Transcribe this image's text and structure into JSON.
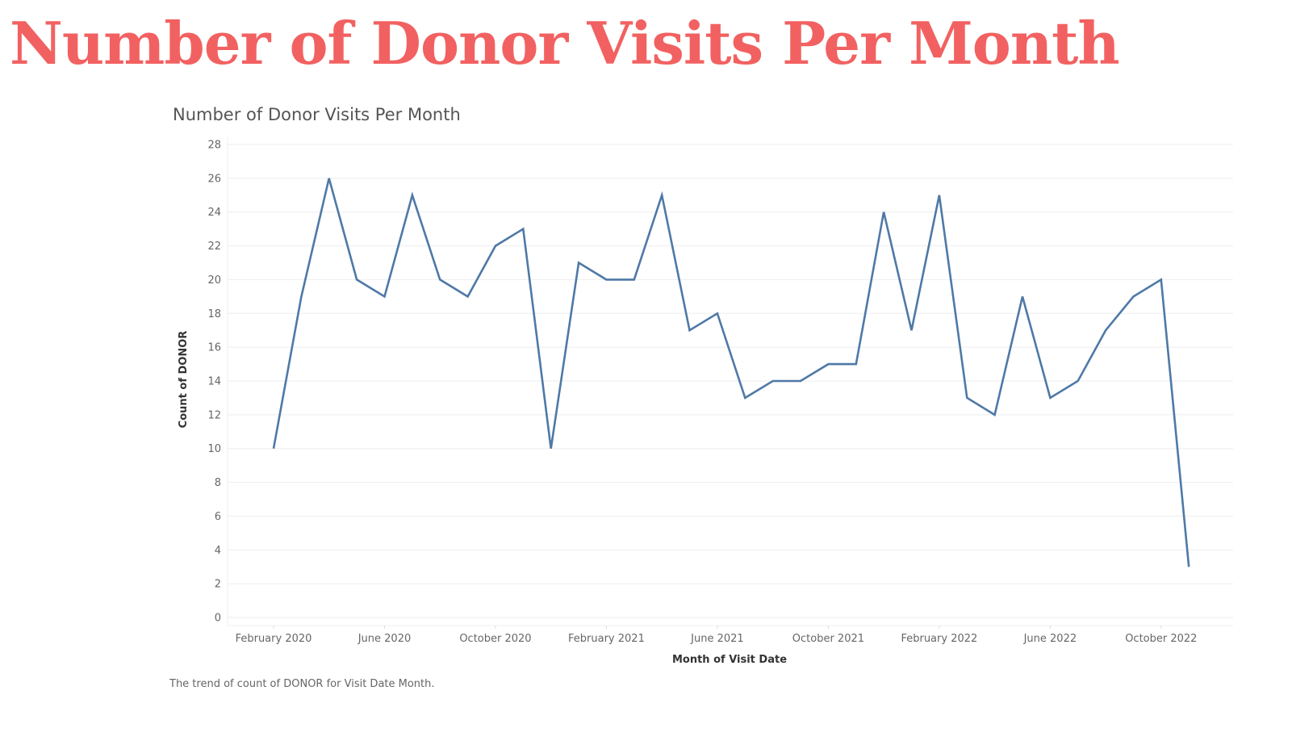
{
  "page": {
    "heading": "Number of Donor Visits Per Month",
    "caption": "The trend of count of DONOR for Visit Date Month."
  },
  "colors": {
    "heading": "#f26161",
    "line": "#4e79a7",
    "grid": "#eeeeee"
  },
  "chart_data": {
    "type": "line",
    "title": "Number of Donor Visits Per Month",
    "xlabel": "Month of Visit Date",
    "ylabel": "Count of DONOR",
    "ylim": [
      0,
      28
    ],
    "y_ticks": [
      0,
      2,
      4,
      6,
      8,
      10,
      12,
      14,
      16,
      18,
      20,
      22,
      24,
      26,
      28
    ],
    "x_ticks": [
      {
        "date": "2020-02",
        "label": "February 2020"
      },
      {
        "date": "2020-06",
        "label": "June 2020"
      },
      {
        "date": "2020-10",
        "label": "October 2020"
      },
      {
        "date": "2021-02",
        "label": "February 2021"
      },
      {
        "date": "2021-06",
        "label": "June 2021"
      },
      {
        "date": "2021-10",
        "label": "October 2021"
      },
      {
        "date": "2022-02",
        "label": "February 2022"
      },
      {
        "date": "2022-06",
        "label": "June 2022"
      },
      {
        "date": "2022-10",
        "label": "October 2022"
      }
    ],
    "grid": true,
    "x": [
      "2020-02",
      "2020-03",
      "2020-04",
      "2020-05",
      "2020-06",
      "2020-07",
      "2020-08",
      "2020-09",
      "2020-10",
      "2020-11",
      "2020-12",
      "2021-01",
      "2021-02",
      "2021-03",
      "2021-04",
      "2021-05",
      "2021-06",
      "2021-07",
      "2021-08",
      "2021-09",
      "2021-10",
      "2021-11",
      "2021-12",
      "2022-01",
      "2022-02",
      "2022-03",
      "2022-04",
      "2022-05",
      "2022-06",
      "2022-07",
      "2022-08",
      "2022-09",
      "2022-10",
      "2022-11",
      "2022-12"
    ],
    "values": [
      10,
      19,
      26,
      20,
      19,
      25,
      20,
      19,
      22,
      23,
      10,
      21,
      20,
      20,
      25,
      17,
      18,
      13,
      14,
      14,
      15,
      15,
      24,
      17,
      25,
      13,
      12,
      19,
      13,
      14,
      17,
      19,
      20,
      3,
      null
    ],
    "series_values_note_free": true
  }
}
